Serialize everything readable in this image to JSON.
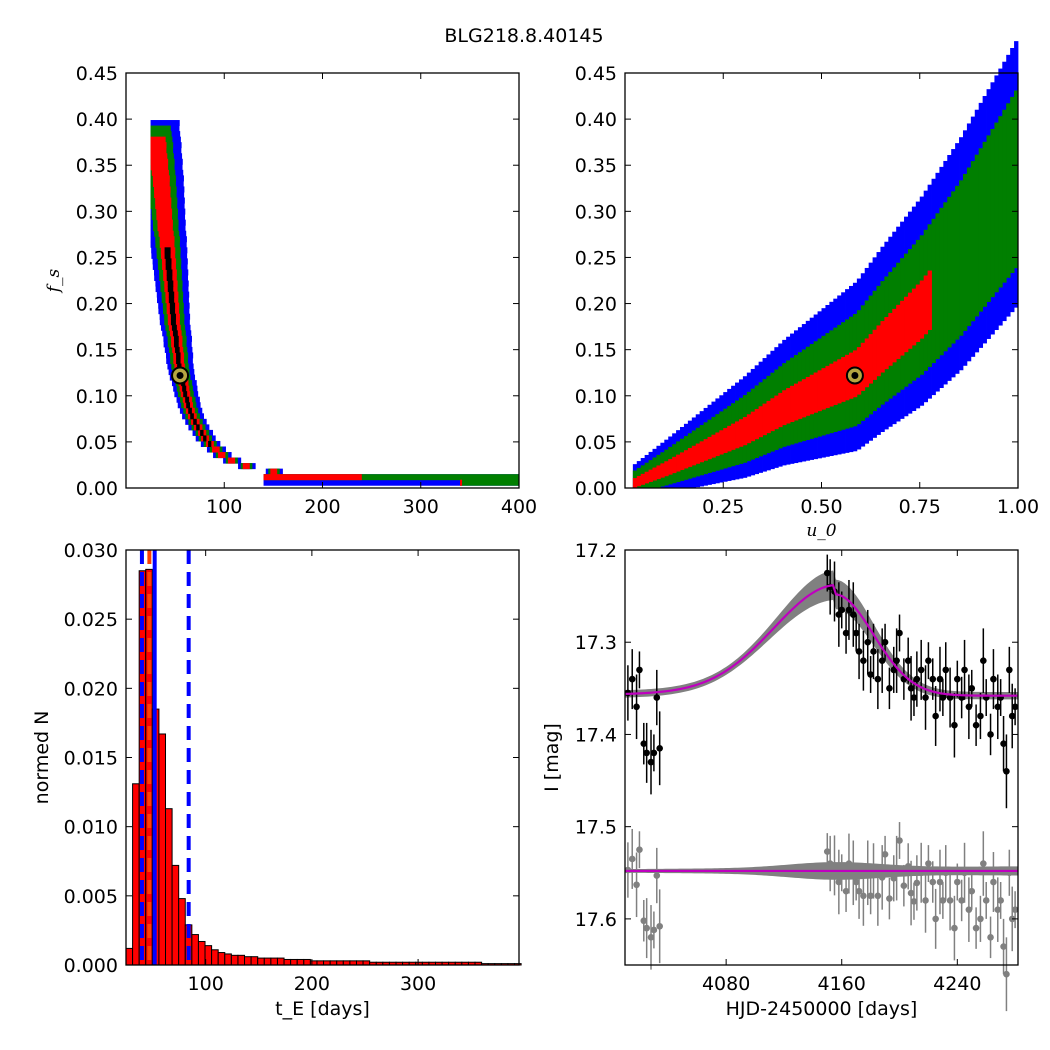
{
  "figure_title": "BLG218.8.40145",
  "colors": {
    "blue": "#0000ff",
    "green": "#007f00",
    "red": "#ff0000",
    "black": "#000000",
    "gray": "#808080",
    "magenta": "#bf00bf",
    "marker_fill": "#b5a642"
  },
  "chart_data": [
    {
      "type": "heatmap",
      "panel": "top-left",
      "xlabel": "",
      "ylabel": "f_s",
      "xlim": [
        0,
        400
      ],
      "ylim": [
        0,
        0.45
      ],
      "xticks": [
        "100",
        "200",
        "300",
        "400"
      ],
      "yticks": [
        "0.00",
        "0.05",
        "0.10",
        "0.15",
        "0.20",
        "0.25",
        "0.30",
        "0.35",
        "0.40",
        "0.45"
      ],
      "levels": [
        "black",
        "red",
        "green",
        "blue"
      ],
      "best_fit": {
        "x": 55,
        "y": 0.122
      },
      "ridge": [
        [
          27,
          0.4
        ],
        [
          35,
          0.33
        ],
        [
          42,
          0.25
        ],
        [
          48,
          0.18
        ],
        [
          55,
          0.122
        ],
        [
          65,
          0.08
        ],
        [
          80,
          0.05
        ],
        [
          100,
          0.03
        ],
        [
          130,
          0.018
        ],
        [
          170,
          0.012
        ],
        [
          200,
          0.009
        ],
        [
          250,
          0.007
        ],
        [
          300,
          0.006
        ],
        [
          400,
          0.005
        ]
      ],
      "widths": {
        "black": 5,
        "red": 12,
        "green": 20,
        "blue": 30
      }
    },
    {
      "type": "heatmap",
      "panel": "top-right",
      "xlabel": "u_0",
      "ylabel": "",
      "xlim": [
        0,
        1.0
      ],
      "ylim": [
        0,
        0.45
      ],
      "xticks": [
        "0.25",
        "0.50",
        "0.75",
        "1.00"
      ],
      "yticks": [
        "0.00",
        "0.05",
        "0.10",
        "0.15",
        "0.20",
        "0.25",
        "0.30",
        "0.35",
        "0.40",
        "0.45"
      ],
      "levels": [
        "red",
        "green",
        "blue"
      ],
      "best_fit": {
        "x": 0.585,
        "y": 0.122
      },
      "ridge": [
        [
          0.02,
          0.005
        ],
        [
          0.1,
          0.02
        ],
        [
          0.2,
          0.04
        ],
        [
          0.3,
          0.06
        ],
        [
          0.4,
          0.085
        ],
        [
          0.5,
          0.105
        ],
        [
          0.585,
          0.122
        ],
        [
          0.65,
          0.15
        ],
        [
          0.75,
          0.19
        ],
        [
          0.85,
          0.24
        ],
        [
          0.95,
          0.3
        ],
        [
          1.0,
          0.33
        ]
      ],
      "widths": {
        "red": 0.025,
        "green": 0.06,
        "blue": 0.09
      }
    },
    {
      "type": "bar",
      "panel": "bottom-left",
      "xlabel": "t_E [days]",
      "ylabel": "normed N",
      "xlim": [
        25,
        395
      ],
      "ylim": [
        0,
        0.03
      ],
      "xticks": [
        "100",
        "200",
        "300"
      ],
      "yticks": [
        "0.000",
        "0.005",
        "0.010",
        "0.015",
        "0.020",
        "0.025",
        "0.030"
      ],
      "bin_start": 25,
      "bin_width": 6.2,
      "values": [
        0.0012,
        0.0131,
        0.0285,
        0.0286,
        0.0185,
        0.0167,
        0.0113,
        0.0072,
        0.0048,
        0.0029,
        0.0022,
        0.0017,
        0.0014,
        0.0011,
        0.0009,
        0.0008,
        0.0007,
        0.0007,
        0.0006,
        0.0006,
        0.0005,
        0.0005,
        0.0005,
        0.0005,
        0.0004,
        0.0004,
        0.0004,
        0.0004,
        0.0003,
        0.0003,
        0.0003,
        0.0003,
        0.0003,
        0.0003,
        0.0003,
        0.0003,
        0.0003,
        0.0002,
        0.0002,
        0.0002,
        0.0002,
        0.0002,
        0.0002,
        0.0002,
        0.0002,
        0.0002,
        0.0002,
        0.0002,
        0.0002,
        0.0002,
        0.0002,
        0.0002,
        0.0002,
        0.0002,
        0.0001,
        0.0001,
        0.0001,
        0.0001,
        0.0001,
        0.0001
      ],
      "vlines": [
        {
          "x": 40,
          "style": "dashed",
          "color": "#0000ff"
        },
        {
          "x": 47,
          "style": "dashed",
          "color": "#ff4000"
        },
        {
          "x": 52,
          "style": "solid",
          "color": "#0000ff"
        },
        {
          "x": 84,
          "style": "dashed",
          "color": "#0000ff"
        }
      ]
    },
    {
      "type": "scatter",
      "panel": "bottom-right",
      "xlabel": "HJD-2450000 [days]",
      "ylabel": "I [mag]",
      "xlim": [
        4010,
        4282
      ],
      "ylim": [
        17.65,
        17.2
      ],
      "xticks": [
        "4080",
        "4160",
        "4240"
      ],
      "yticks": [
        "17.2",
        "17.3",
        "17.4",
        "17.5",
        "17.6"
      ],
      "model": {
        "base": 17.358,
        "peak_time": 4155,
        "amp": 0.11
      },
      "residual_offset": 0.19,
      "series": [
        {
          "name": "",
          "color": "#000000",
          "points": [
            [
              4012,
              17.355
            ],
            [
              4015,
              17.34
            ],
            [
              4018,
              17.37
            ],
            [
              4020,
              17.33
            ],
            [
              4023,
              17.41
            ],
            [
              4025,
              17.42
            ],
            [
              4028,
              17.43
            ],
            [
              4030,
              17.42
            ],
            [
              4032,
              17.36
            ],
            [
              4034,
              17.415
            ],
            [
              4150,
              17.225
            ],
            [
              4152,
              17.24
            ],
            [
              4155,
              17.245
            ],
            [
              4158,
              17.27
            ],
            [
              4160,
              17.265
            ],
            [
              4163,
              17.29
            ],
            [
              4165,
              17.265
            ],
            [
              4168,
              17.27
            ],
            [
              4170,
              17.29
            ],
            [
              4172,
              17.31
            ],
            [
              4175,
              17.32
            ],
            [
              4178,
              17.3
            ],
            [
              4180,
              17.335
            ],
            [
              4182,
              17.31
            ],
            [
              4185,
              17.34
            ],
            [
              4188,
              17.32
            ],
            [
              4190,
              17.3
            ],
            [
              4193,
              17.35
            ],
            [
              4196,
              17.33
            ],
            [
              4198,
              17.32
            ],
            [
              4200,
              17.29
            ],
            [
              4203,
              17.34
            ],
            [
              4206,
              17.32
            ],
            [
              4208,
              17.35
            ],
            [
              4210,
              17.36
            ],
            [
              4212,
              17.34
            ],
            [
              4215,
              17.33
            ],
            [
              4218,
              17.36
            ],
            [
              4220,
              17.32
            ],
            [
              4223,
              17.34
            ],
            [
              4225,
              17.38
            ],
            [
              4228,
              17.34
            ],
            [
              4230,
              17.36
            ],
            [
              4232,
              17.33
            ],
            [
              4235,
              17.36
            ],
            [
              4238,
              17.39
            ],
            [
              4240,
              17.34
            ],
            [
              4243,
              17.36
            ],
            [
              4245,
              17.33
            ],
            [
              4248,
              17.37
            ],
            [
              4250,
              17.35
            ],
            [
              4253,
              17.39
            ],
            [
              4256,
              17.38
            ],
            [
              4258,
              17.32
            ],
            [
              4260,
              17.36
            ],
            [
              4263,
              17.4
            ],
            [
              4265,
              17.34
            ],
            [
              4268,
              17.37
            ],
            [
              4270,
              17.36
            ],
            [
              4272,
              17.41
            ],
            [
              4274,
              17.44
            ],
            [
              4276,
              17.33
            ],
            [
              4278,
              17.38
            ],
            [
              4280,
              17.37
            ]
          ]
        },
        {
          "name": "",
          "color": "#808080",
          "points": [
            [
              4012,
              17.547
            ],
            [
              4015,
              17.535
            ],
            [
              4018,
              17.563
            ],
            [
              4020,
              17.525
            ],
            [
              4023,
              17.602
            ],
            [
              4025,
              17.61
            ],
            [
              4028,
              17.62
            ],
            [
              4030,
              17.612
            ],
            [
              4032,
              17.553
            ],
            [
              4034,
              17.608
            ],
            [
              4150,
              17.527
            ],
            [
              4152,
              17.54
            ],
            [
              4155,
              17.542
            ],
            [
              4158,
              17.56
            ],
            [
              4160,
              17.55
            ],
            [
              4163,
              17.57
            ],
            [
              4165,
              17.54
            ],
            [
              4168,
              17.55
            ],
            [
              4170,
              17.56
            ],
            [
              4172,
              17.57
            ],
            [
              4175,
              17.575
            ],
            [
              4178,
              17.55
            ],
            [
              4180,
              17.575
            ],
            [
              4182,
              17.548
            ],
            [
              4185,
              17.575
            ],
            [
              4188,
              17.555
            ],
            [
              4190,
              17.53
            ],
            [
              4193,
              17.578
            ],
            [
              4196,
              17.556
            ],
            [
              4198,
              17.545
            ],
            [
              4200,
              17.515
            ],
            [
              4203,
              17.564
            ],
            [
              4206,
              17.543
            ],
            [
              4208,
              17.572
            ],
            [
              4210,
              17.581
            ],
            [
              4212,
              17.561
            ],
            [
              4215,
              17.55
            ],
            [
              4218,
              17.58
            ],
            [
              4220,
              17.54
            ],
            [
              4223,
              17.56
            ],
            [
              4225,
              17.6
            ],
            [
              4228,
              17.56
            ],
            [
              4230,
              17.58
            ],
            [
              4232,
              17.55
            ],
            [
              4235,
              17.58
            ],
            [
              4238,
              17.61
            ],
            [
              4240,
              17.56
            ],
            [
              4243,
              17.58
            ],
            [
              4245,
              17.55
            ],
            [
              4248,
              17.59
            ],
            [
              4250,
              17.57
            ],
            [
              4253,
              17.61
            ],
            [
              4256,
              17.6
            ],
            [
              4258,
              17.54
            ],
            [
              4260,
              17.58
            ],
            [
              4263,
              17.62
            ],
            [
              4265,
              17.56
            ],
            [
              4268,
              17.59
            ],
            [
              4270,
              17.58
            ],
            [
              4272,
              17.63
            ],
            [
              4274,
              17.66
            ],
            [
              4276,
              17.55
            ],
            [
              4278,
              17.6
            ],
            [
              4280,
              17.59
            ]
          ]
        }
      ]
    }
  ]
}
